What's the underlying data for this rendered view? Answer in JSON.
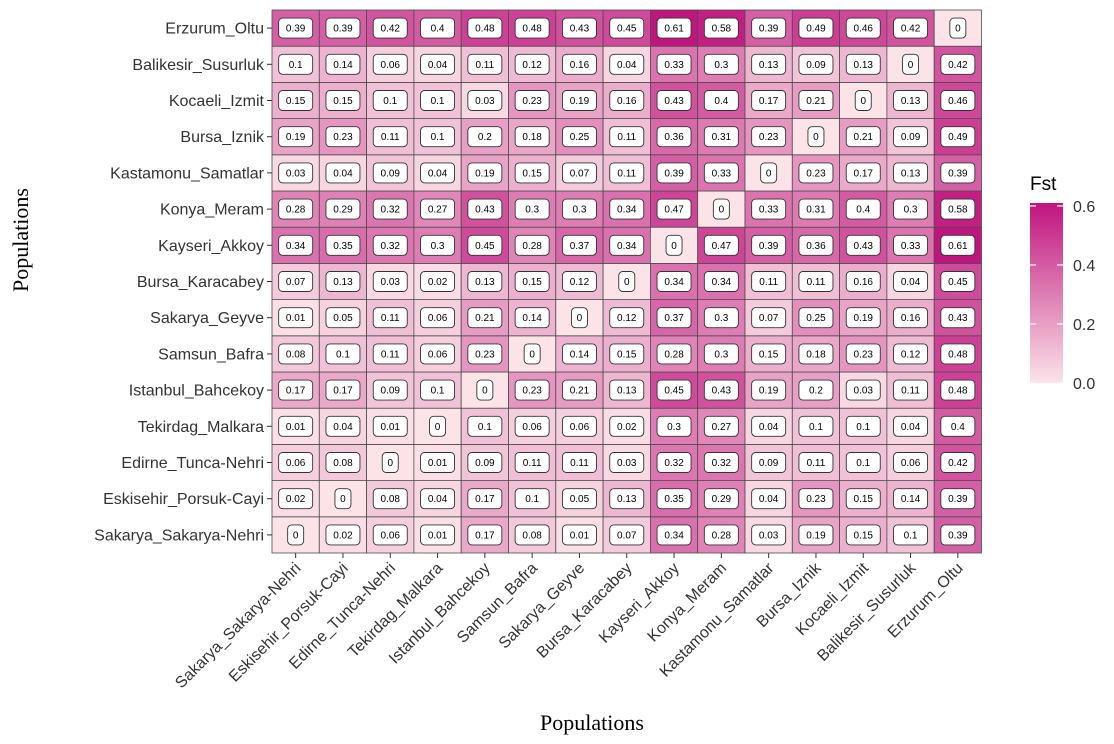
{
  "chart_data": {
    "type": "heatmap",
    "xlabel": "Populations",
    "ylabel": "Populations",
    "populations": [
      "Sakarya_Sakarya-Nehri",
      "Eskisehir_Porsuk-Cayi",
      "Edirne_Tunca-Nehri",
      "Tekirdag_Malkara",
      "Istanbul_Bahcekoy",
      "Samsun_Bafra",
      "Sakarya_Geyve",
      "Bursa_Karacabey",
      "Kayseri_Akkoy",
      "Konya_Meram",
      "Kastamonu_Samatlar",
      "Bursa_Iznik",
      "Kocaeli_Izmit",
      "Balikesir_Susurluk",
      "Erzurum_Oltu"
    ],
    "values": [
      [
        "0",
        "0.02",
        "0.06",
        "0.01",
        "0.17",
        "0.08",
        "0.01",
        "0.07",
        "0.34",
        "0.28",
        "0.03",
        "0.19",
        "0.15",
        "0.1",
        "0.39"
      ],
      [
        "0.02",
        "0",
        "0.08",
        "0.04",
        "0.17",
        "0.1",
        "0.05",
        "0.13",
        "0.35",
        "0.29",
        "0.04",
        "0.23",
        "0.15",
        "0.14",
        "0.39"
      ],
      [
        "0.06",
        "0.08",
        "0",
        "0.01",
        "0.09",
        "0.11",
        "0.11",
        "0.03",
        "0.32",
        "0.32",
        "0.09",
        "0.11",
        "0.1",
        "0.06",
        "0.42"
      ],
      [
        "0.01",
        "0.04",
        "0.01",
        "0",
        "0.1",
        "0.06",
        "0.06",
        "0.02",
        "0.3",
        "0.27",
        "0.04",
        "0.1",
        "0.1",
        "0.04",
        "0.4"
      ],
      [
        "0.17",
        "0.17",
        "0.09",
        "0.1",
        "0",
        "0.23",
        "0.21",
        "0.13",
        "0.45",
        "0.43",
        "0.19",
        "0.2",
        "0.03",
        "0.11",
        "0.48"
      ],
      [
        "0.08",
        "0.1",
        "0.11",
        "0.06",
        "0.23",
        "0",
        "0.14",
        "0.15",
        "0.28",
        "0.3",
        "0.15",
        "0.18",
        "0.23",
        "0.12",
        "0.48"
      ],
      [
        "0.01",
        "0.05",
        "0.11",
        "0.06",
        "0.21",
        "0.14",
        "0",
        "0.12",
        "0.37",
        "0.3",
        "0.07",
        "0.25",
        "0.19",
        "0.16",
        "0.43"
      ],
      [
        "0.07",
        "0.13",
        "0.03",
        "0.02",
        "0.13",
        "0.15",
        "0.12",
        "0",
        "0.34",
        "0.34",
        "0.11",
        "0.11",
        "0.16",
        "0.04",
        "0.45"
      ],
      [
        "0.34",
        "0.35",
        "0.32",
        "0.3",
        "0.45",
        "0.28",
        "0.37",
        "0.34",
        "0",
        "0.47",
        "0.39",
        "0.36",
        "0.43",
        "0.33",
        "0.61"
      ],
      [
        "0.28",
        "0.29",
        "0.32",
        "0.27",
        "0.43",
        "0.3",
        "0.3",
        "0.34",
        "0.47",
        "0",
        "0.33",
        "0.31",
        "0.4",
        "0.3",
        "0.58"
      ],
      [
        "0.03",
        "0.04",
        "0.09",
        "0.04",
        "0.19",
        "0.15",
        "0.07",
        "0.11",
        "0.39",
        "0.33",
        "0",
        "0.23",
        "0.17",
        "0.13",
        "0.39"
      ],
      [
        "0.19",
        "0.23",
        "0.11",
        "0.1",
        "0.2",
        "0.18",
        "0.25",
        "0.11",
        "0.36",
        "0.31",
        "0.23",
        "0",
        "0.21",
        "0.09",
        "0.49"
      ],
      [
        "0.15",
        "0.15",
        "0.1",
        "0.1",
        "0.03",
        "0.23",
        "0.19",
        "0.16",
        "0.43",
        "0.4",
        "0.17",
        "0.21",
        "0",
        "0.13",
        "0.46"
      ],
      [
        "0.1",
        "0.14",
        "0.06",
        "0.04",
        "0.11",
        "0.12",
        "0.16",
        "0.04",
        "0.33",
        "0.3",
        "0.13",
        "0.09",
        "0.13",
        "0",
        "0.42"
      ],
      [
        "0.39",
        "0.39",
        "0.42",
        "0.4",
        "0.48",
        "0.48",
        "0.43",
        "0.45",
        "0.61",
        "0.58",
        "0.39",
        "0.49",
        "0.46",
        "0.42",
        "0"
      ]
    ],
    "color_scale": {
      "low": "#fbe3e8",
      "high": "#c0147e",
      "range": [
        0,
        0.61
      ]
    },
    "legend": {
      "title": "Fst",
      "placement": "right",
      "ticks": [
        "0.0",
        "0.2",
        "0.4",
        "0.6"
      ],
      "tick_values": [
        0,
        0.2,
        0.4,
        0.6
      ]
    }
  }
}
